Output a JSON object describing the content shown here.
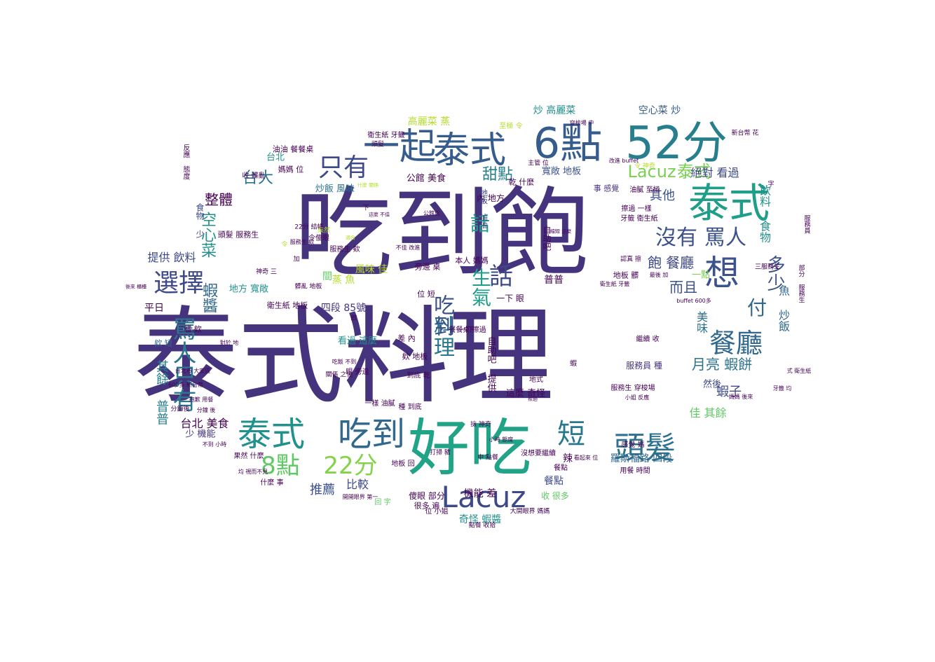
{
  "words": [
    {
      "text": "泰式料理",
      "color": "#46337e",
      "vertical": false
    },
    {
      "text": "吃到飽",
      "color": "#46337e",
      "vertical": false
    },
    {
      "text": "好吃",
      "color": "#20a386",
      "vertical": false
    },
    {
      "text": "52分",
      "color": "#277f8e",
      "vertical": false
    },
    {
      "text": "6點",
      "color": "#365c8d",
      "vertical": false
    },
    {
      "text": "泰式",
      "color": "#1f9e89",
      "vertical": false
    },
    {
      "text": "泰式",
      "color": "#365c8d",
      "vertical": false
    },
    {
      "text": "一起",
      "color": "#365c8d",
      "vertical": false
    },
    {
      "text": "想",
      "color": "#3b528b",
      "vertical": false
    },
    {
      "text": "泰式",
      "color": "#21918c",
      "vertical": false
    },
    {
      "text": "吃到",
      "color": "#31688e",
      "vertical": false
    },
    {
      "text": "Lacuz",
      "color": "#3e4989",
      "vertical": false
    },
    {
      "text": "頭髮",
      "color": "#2c728e",
      "vertical": false
    },
    {
      "text": "短",
      "color": "#2a788e",
      "vertical": false
    },
    {
      "text": "8點",
      "color": "#5ec962",
      "vertical": false
    },
    {
      "text": "22分",
      "color": "#84d44b",
      "vertical": false
    },
    {
      "text": "餐廳",
      "color": "#31688e",
      "vertical": false
    },
    {
      "text": "選擇",
      "color": "#3e4989",
      "vertical": false
    },
    {
      "text": "只有",
      "color": "#3e4989",
      "vertical": false
    },
    {
      "text": "話",
      "color": "#3e4989",
      "vertical": false
    },
    {
      "text": "沒有",
      "color": "#3b528b",
      "vertical": false
    },
    {
      "text": "罵人",
      "color": "#3b528b",
      "vertical": false
    },
    {
      "text": "Lacuz",
      "color": "#7ad151",
      "vertical": false
    },
    {
      "text": "泰式",
      "color": "#7ad151",
      "vertical": false
    },
    {
      "text": "料理",
      "color": "#2a788e",
      "vertical": true
    },
    {
      "text": "吃到",
      "color": "#3b528b",
      "vertical": true
    },
    {
      "text": "話",
      "color": "#1f9e89",
      "vertical": false
    },
    {
      "text": "生氣",
      "color": "#1f9e89",
      "vertical": true
    },
    {
      "text": "罵人只有",
      "color": "#2a788e",
      "vertical": true
    },
    {
      "text": "付",
      "color": "#31688e",
      "vertical": false
    },
    {
      "text": "多少",
      "color": "#3b528b",
      "vertical": true
    },
    {
      "text": "台大",
      "color": "#2c728e",
      "vertical": false
    },
    {
      "text": "甜點",
      "color": "#277f8e",
      "vertical": false
    },
    {
      "text": "空心菜",
      "color": "#21918c",
      "vertical": true
    },
    {
      "text": "整體",
      "color": "#440154",
      "vertical": false
    },
    {
      "text": "蝦醬",
      "color": "#31688e",
      "vertical": true
    },
    {
      "text": "飽 餐廳",
      "color": "#3e4989",
      "vertical": false
    },
    {
      "text": "而且",
      "color": "#3b528b",
      "vertical": false
    },
    {
      "text": "其他",
      "color": "#3b528b",
      "vertical": false
    },
    {
      "text": "月亮 蝦餅",
      "color": "#2c728e",
      "vertical": false
    },
    {
      "text": "蝦子",
      "color": "#3e4989",
      "vertical": false
    },
    {
      "text": "美味",
      "color": "#2c728e",
      "vertical": true
    },
    {
      "text": "魚 炒飯",
      "color": "#31688e",
      "vertical": true
    },
    {
      "text": "飲料 食物",
      "color": "#21918c",
      "vertical": true
    },
    {
      "text": "絕對 看過",
      "color": "#3e4989",
      "vertical": false
    },
    {
      "text": "其餘 普普",
      "color": "#277f8e",
      "vertical": true
    },
    {
      "text": "台北 美食",
      "color": "#440154",
      "vertical": false
    },
    {
      "text": "佳 其餘",
      "color": "#5ec962",
      "vertical": false
    },
    {
      "text": "羅斯福路 四段",
      "color": "#31688e",
      "vertical": false
    },
    {
      "text": "推薦",
      "color": "#3b528b",
      "vertical": false
    },
    {
      "text": "比較",
      "color": "#3e4989",
      "vertical": false
    },
    {
      "text": "奇怪 蝦醬",
      "color": "#21918c",
      "vertical": false
    },
    {
      "text": "機能 差",
      "color": "#440154",
      "vertical": false
    },
    {
      "text": "餐點",
      "color": "#3e4989",
      "vertical": false
    },
    {
      "text": "辣",
      "color": "#440154",
      "vertical": false
    },
    {
      "text": "提供 飲料",
      "color": "#3e4989",
      "vertical": false
    },
    {
      "text": "四段 85號",
      "color": "#46337e",
      "vertical": false
    },
    {
      "text": "蒸 魚",
      "color": "#b5de2b",
      "vertical": false
    },
    {
      "text": "風味 佳",
      "color": "#b5de2b",
      "vertical": false
    },
    {
      "text": "高麗菜 蒸",
      "color": "#b5de2b",
      "vertical": false
    },
    {
      "text": "炒 高麗菜",
      "color": "#21918c",
      "vertical": false
    },
    {
      "text": "空心菜 炒",
      "color": "#365c8d",
      "vertical": false
    },
    {
      "text": "寬敞 地板",
      "color": "#3b528b",
      "vertical": false
    },
    {
      "text": "炒飯 風味",
      "color": "#2c728e",
      "vertical": false
    },
    {
      "text": "公館 美食",
      "color": "#440154",
      "vertical": false
    },
    {
      "text": "地方 寬敞",
      "color": "#21918c",
      "vertical": false
    },
    {
      "text": "看過 這麼",
      "color": "#21918c",
      "vertical": false
    },
    {
      "text": "這麼 奇怪",
      "color": "#440154",
      "vertical": false
    },
    {
      "text": "自助吧 提供",
      "color": "#440154",
      "vertical": true
    },
    {
      "text": "普普",
      "color": "#440154",
      "vertical": false
    },
    {
      "text": "自助吧",
      "color": "#440154",
      "vertical": true
    },
    {
      "text": "一點",
      "color": "#7ad151",
      "vertical": false
    },
    {
      "text": "然後",
      "color": "#3e4989",
      "vertical": false
    },
    {
      "text": "平日",
      "color": "#440154",
      "vertical": false
    },
    {
      "text": "服務員 種",
      "color": "#46337e",
      "vertical": false
    },
    {
      "text": "間",
      "color": "#5ec962",
      "vertical": false
    },
    {
      "text": "台北",
      "color": "#21918c",
      "vertical": false
    },
    {
      "text": "食物 少",
      "color": "#3e4989",
      "vertical": true
    },
    {
      "text": "少 機能",
      "color": "#46337e",
      "vertical": false
    },
    {
      "text": "收 很多",
      "color": "#5ec962",
      "vertical": false
    },
    {
      "text": "傻眼 部分",
      "color": "#440154",
      "vertical": false
    },
    {
      "text": "很多 遍",
      "color": "#440154",
      "vertical": false
    },
    {
      "text": "一下 眼",
      "color": "#440154",
      "vertical": false
    },
    {
      "text": "內 地方",
      "color": "#440154",
      "vertical": false
    },
    {
      "text": "乾 什麼",
      "color": "#440154",
      "vertical": false
    },
    {
      "text": "地板 油油",
      "color": "#3e4989",
      "vertical": true
    },
    {
      "text": "頭髮 服務生",
      "color": "#440154",
      "vertical": false
    },
    {
      "text": "油油 餐餐桌",
      "color": "#440154",
      "vertical": false
    },
    {
      "text": "媽媽 位",
      "color": "#440154",
      "vertical": false
    },
    {
      "text": "收 髒亂",
      "color": "#440154",
      "vertical": false
    },
    {
      "text": "欸 短",
      "color": "#31688e",
      "vertical": false
    },
    {
      "text": "事 感覺",
      "color": "#46337e",
      "vertical": false
    },
    {
      "text": "擦過 一樣",
      "color": "#440154",
      "vertical": false
    },
    {
      "text": "牙籤 衛生紙",
      "color": "#440154",
      "vertical": false
    },
    {
      "text": "地板 髒",
      "color": "#440154",
      "vertical": false
    },
    {
      "text": "衛生紙 地板",
      "color": "#440154",
      "vertical": false
    },
    {
      "text": "差 內",
      "color": "#440154",
      "vertical": false
    },
    {
      "text": "欸 地板",
      "color": "#440154",
      "vertical": false
    },
    {
      "text": "旁邊 桌",
      "color": "#440154",
      "vertical": false
    },
    {
      "text": "位 短",
      "color": "#440154",
      "vertical": false
    },
    {
      "text": "本人 媽媽",
      "color": "#440154",
      "vertical": false
    },
    {
      "text": "令傻眼",
      "color": "#440154",
      "vertical": false
    },
    {
      "text": "服務生 欸",
      "color": "#440154",
      "vertical": false
    },
    {
      "text": "果然 什麼",
      "color": "#440154",
      "vertical": false
    },
    {
      "text": "什麼 事",
      "color": "#440154",
      "vertical": false
    },
    {
      "text": "餐點",
      "color": "#440154",
      "vertical": false
    },
    {
      "text": "蝦",
      "color": "#440154",
      "vertical": false
    },
    {
      "text": "髒 欸",
      "color": "#440154",
      "vertical": false
    },
    {
      "text": "油膩 至極",
      "color": "#440154",
      "vertical": false
    },
    {
      "text": "服務生 穿梭場",
      "color": "#440154",
      "vertical": false
    },
    {
      "text": "繼續 收",
      "color": "#440154",
      "vertical": false
    },
    {
      "text": "一樣 油膩",
      "color": "#440154",
      "vertical": false
    },
    {
      "text": "眼 旁邊",
      "color": "#440154",
      "vertical": false
    },
    {
      "text": "到底 乾",
      "color": "#440154",
      "vertical": false
    },
    {
      "text": "種 到底",
      "color": "#440154",
      "vertical": false
    },
    {
      "text": "衛生紙 牙籤",
      "color": "#440154",
      "vertical": false
    },
    {
      "text": "至極 令",
      "color": "#b5de2b",
      "vertical": false
    },
    {
      "text": "感覺 媽",
      "color": "#440154",
      "vertical": false
    },
    {
      "text": "用餐 時間",
      "color": "#440154",
      "vertical": false
    },
    {
      "text": "沒想要繼續",
      "color": "#440154",
      "vertical": false
    },
    {
      "text": "地板 回",
      "color": "#440154",
      "vertical": false
    },
    {
      "text": "回 字",
      "color": "#5ec962",
      "vertical": false
    },
    {
      "text": "位 小姐",
      "color": "#440154",
      "vertical": false
    },
    {
      "text": "點餐 收拾",
      "color": "#440154",
      "vertical": false
    },
    {
      "text": "大開眼界 媽媽",
      "color": "#440154",
      "vertical": false
    },
    {
      "text": "中 點餐",
      "color": "#440154",
      "vertical": false
    },
    {
      "text": "打掃 豬",
      "color": "#440154",
      "vertical": false
    },
    {
      "text": "地式",
      "color": "#440154",
      "vertical": false
    },
    {
      "text": "令 神奇",
      "color": "#b5de2b",
      "vertical": false
    },
    {
      "text": "服務員",
      "color": "#440154",
      "vertical": true
    },
    {
      "text": "部分 服務生",
      "color": "#440154",
      "vertical": true
    },
    {
      "text": "反應 態度",
      "color": "#440154",
      "vertical": true
    },
    {
      "text": "認真 擦",
      "color": "#440154",
      "vertical": false
    },
    {
      "text": "分鐘後",
      "color": "#440154",
      "vertical": false
    },
    {
      "text": "髒亂 地板",
      "color": "#440154",
      "vertical": false
    },
    {
      "text": "加",
      "color": "#440154",
      "vertical": false
    },
    {
      "text": "下",
      "color": "#440154",
      "vertical": false
    },
    {
      "text": "果然",
      "color": "#b5de2b",
      "vertical": false
    },
    {
      "text": "令",
      "color": "#b5de2b",
      "vertical": false
    },
    {
      "text": "啟",
      "color": "#440154",
      "vertical": false
    },
    {
      "text": "字",
      "color": "#440154",
      "vertical": false
    },
    {
      "text": "新台幣 花",
      "color": "#440154",
      "vertical": false
    },
    {
      "text": "主管 位",
      "color": "#440154",
      "vertical": false
    },
    {
      "text": "改進 buffet",
      "color": "#440154",
      "vertical": false
    },
    {
      "text": "頭髮",
      "color": "#440154",
      "vertical": false
    },
    {
      "text": "穿梭場 中",
      "color": "#440154",
      "vertical": false
    },
    {
      "text": "22分 結帳",
      "color": "#440154",
      "vertical": false
    },
    {
      "text": "神奇 三",
      "color": "#440154",
      "vertical": false
    },
    {
      "text": "三服務生",
      "color": "#440154",
      "vertical": false
    },
    {
      "text": "撿 神奇",
      "color": "#440154",
      "vertical": false
    },
    {
      "text": "關係 之後",
      "color": "#440154",
      "vertical": false
    },
    {
      "text": "看起來 位",
      "color": "#440154",
      "vertical": false
    },
    {
      "text": "最後 加",
      "color": "#440154",
      "vertical": false
    },
    {
      "text": "buffet 600多",
      "color": "#440154",
      "vertical": false
    },
    {
      "text": "衛生紙 牙籤",
      "color": "#440154",
      "vertical": false
    },
    {
      "text": "式 衛生紙",
      "color": "#440154",
      "vertical": false
    },
    {
      "text": "牙籤 均",
      "color": "#440154",
      "vertical": false
    },
    {
      "text": "小姐 反應",
      "color": "#440154",
      "vertical": false
    },
    {
      "text": "媽媽 後來",
      "color": "#440154",
      "vertical": false
    },
    {
      "text": "對於 地",
      "color": "#440154",
      "vertical": false
    },
    {
      "text": "台北市 大安區",
      "color": "#440154",
      "vertical": false
    },
    {
      "text": "600多 新台幣",
      "color": "#440154",
      "vertical": false
    },
    {
      "text": "抱歉 用餐",
      "color": "#440154",
      "vertical": false
    },
    {
      "text": "分鐘 後",
      "color": "#440154",
      "vertical": false
    },
    {
      "text": "均 視而不見",
      "color": "#440154",
      "vertical": false
    },
    {
      "text": "不到 小時",
      "color": "#440154",
      "vertical": false
    },
    {
      "text": "吃飯 不到",
      "color": "#440154",
      "vertical": false
    },
    {
      "text": "小時 態度",
      "color": "#440154",
      "vertical": false
    },
    {
      "text": "開開眼界 第一",
      "color": "#440154",
      "vertical": false
    },
    {
      "text": "服務生 欸",
      "color": "#440154",
      "vertical": false
    },
    {
      "text": "不佳 改進",
      "color": "#440154",
      "vertical": false
    },
    {
      "text": "後來 櫃檯",
      "color": "#440154",
      "vertical": false
    },
    {
      "text": "什麼 關係",
      "color": "#b5de2b",
      "vertical": false
    },
    {
      "text": "公館店",
      "color": "#440154",
      "vertical": false
    },
    {
      "text": "縮短 這麼",
      "color": "#440154",
      "vertical": false
    },
    {
      "text": "這麼 不佳",
      "color": "#440154",
      "vertical": false
    },
    {
      "text": "適合",
      "color": "#b5de2b",
      "vertical": false
    },
    {
      "text": "擦過",
      "color": "#440154",
      "vertical": false
    },
    {
      "text": "餐餐桌 擦過",
      "color": "#440154",
      "vertical": false
    },
    {
      "text": "一下",
      "color": "#440154",
      "vertical": false
    }
  ]
}
